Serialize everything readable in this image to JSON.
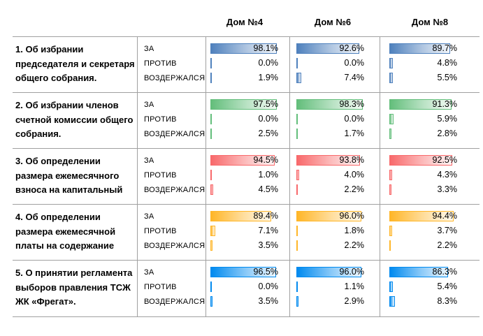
{
  "chart_data": {
    "type": "table",
    "houses": [
      "Дом №4",
      "Дом №6",
      "Дом №8"
    ],
    "options": [
      "ЗА",
      "ПРОТИВ",
      "ВОЗДЕРЖАЛСЯ"
    ],
    "questions": [
      {
        "text": [
          "1. Об избрании",
          "председателя и секретаря",
          "общего собрания."
        ],
        "color": "#4f81bd",
        "values": [
          [
            98.1,
            0.0,
            1.9
          ],
          [
            92.6,
            0.0,
            7.4
          ],
          [
            89.7,
            4.8,
            5.5
          ]
        ],
        "labels": [
          [
            "98.1%",
            "0.0%",
            "1.9%"
          ],
          [
            "92.6%",
            "0.0%",
            "7.4%"
          ],
          [
            "89.7%",
            "4.8%",
            "5.5%"
          ]
        ]
      },
      {
        "text": [
          "2. Об избрании членов",
          "счетной комиссии общего",
          "собрания."
        ],
        "color": "#63be7b",
        "values": [
          [
            97.5,
            0.0,
            2.5
          ],
          [
            98.3,
            0.0,
            1.7
          ],
          [
            91.3,
            5.9,
            2.8
          ]
        ],
        "labels": [
          [
            "97.5%",
            "0.0%",
            "2.5%"
          ],
          [
            "98.3%",
            "0.0%",
            "1.7%"
          ],
          [
            "91.3%",
            "5.9%",
            "2.8%"
          ]
        ]
      },
      {
        "text": [
          "3. Об определении",
          "размера ежемесячного",
          "взноса на капитальный"
        ],
        "color": "#f8696b",
        "values": [
          [
            94.5,
            1.0,
            4.5
          ],
          [
            93.8,
            4.0,
            2.2
          ],
          [
            92.5,
            4.3,
            3.3
          ]
        ],
        "labels": [
          [
            "94.5%",
            "1.0%",
            "4.5%"
          ],
          [
            "93.8%",
            "4.0%",
            "2.2%"
          ],
          [
            "92.5%",
            "4.3%",
            "3.3%"
          ]
        ]
      },
      {
        "text": [
          "4. Об определении",
          "размера ежемесячной",
          "платы на содержание"
        ],
        "color": "#ffb628",
        "values": [
          [
            89.4,
            7.1,
            3.5
          ],
          [
            96.0,
            1.8,
            2.2
          ],
          [
            94.4,
            3.7,
            2.2
          ]
        ],
        "labels": [
          [
            "89.4%",
            "7.1%",
            "3.5%"
          ],
          [
            "96.0%",
            "1.8%",
            "2.2%"
          ],
          [
            "94.4%",
            "3.7%",
            "2.2%"
          ]
        ]
      },
      {
        "text": [
          "5. О принятии регламента",
          "выборов правления ТСЖ",
          "ЖК «Фрегат»."
        ],
        "color": "#008aef",
        "values": [
          [
            96.5,
            0.0,
            3.5
          ],
          [
            96.0,
            1.1,
            2.9
          ],
          [
            86.3,
            5.4,
            8.3
          ]
        ],
        "labels": [
          [
            "96.5%",
            "0.0%",
            "3.5%"
          ],
          [
            "96.0%",
            "1.1%",
            "2.9%"
          ],
          [
            "86.3%",
            "5.4%",
            "8.3%"
          ]
        ]
      }
    ]
  }
}
